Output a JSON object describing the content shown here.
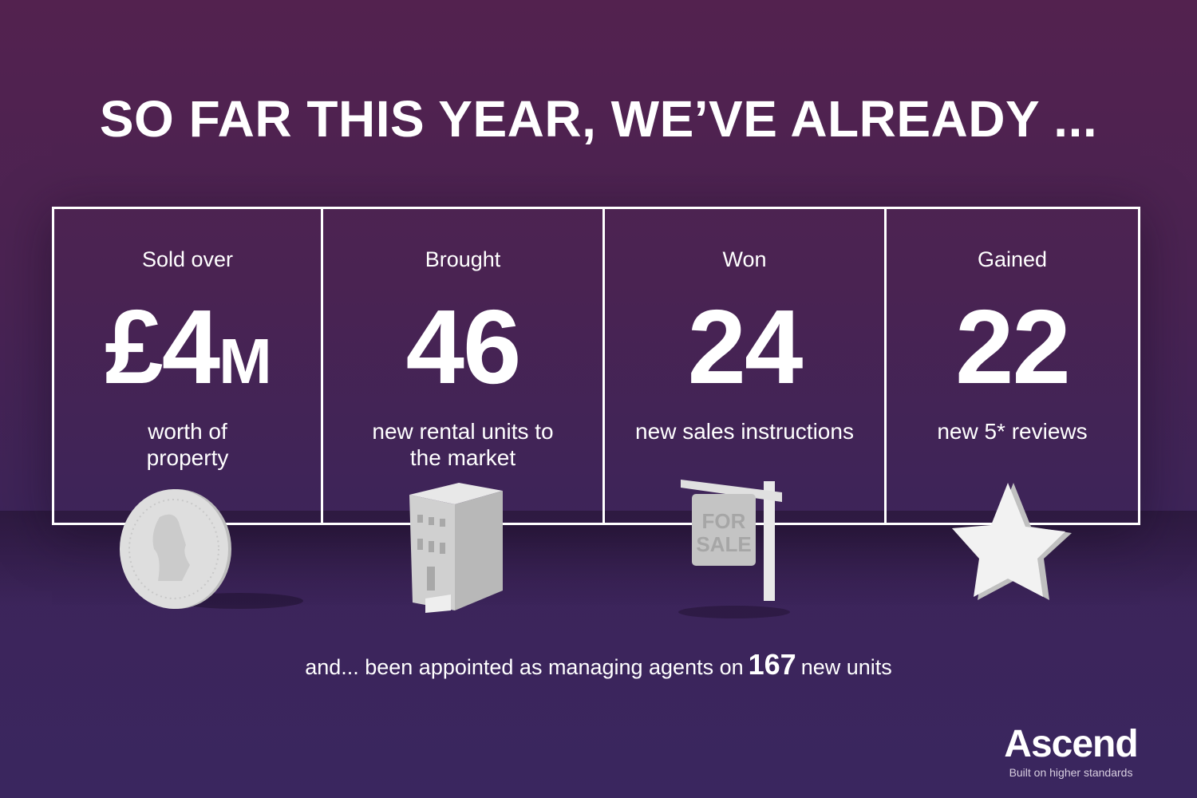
{
  "title": "SO FAR THIS YEAR, WE’VE ALREADY ...",
  "stats": [
    {
      "lead": "Sold over",
      "number": "£4",
      "unit": "M",
      "desc": "worth of property",
      "icon": "coin-icon"
    },
    {
      "lead": "Brought",
      "number": "46",
      "unit": "",
      "desc": "new rental units to the market",
      "icon": "building-icon"
    },
    {
      "lead": "Won",
      "number": "24",
      "unit": "",
      "desc": "new sales instructions",
      "icon": "for-sale-sign-icon",
      "sign_text": "FOR SALE"
    },
    {
      "lead": "Gained",
      "number": "22",
      "unit": "",
      "desc": "new 5* reviews",
      "icon": "star-icon"
    }
  ],
  "footer": {
    "before": "and... been appointed as managing agents on",
    "number": "167",
    "after": "new units"
  },
  "logo": {
    "brand": "Ascend",
    "tagline": "Built on higher standards"
  },
  "colors": {
    "bg_top": "#53224f",
    "bg_bottom": "#3a265f",
    "text": "#ffffff",
    "icon": "#dcdcdc"
  }
}
